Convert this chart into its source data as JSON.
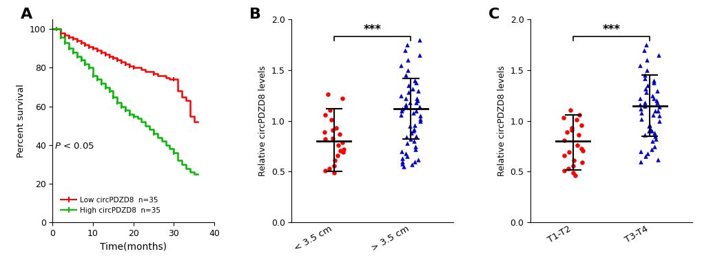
{
  "panel_A": {
    "xlabel": "Time(months)",
    "ylabel": "Percent survival",
    "xlim": [
      0,
      40
    ],
    "ylim": [
      0,
      105
    ],
    "xticks": [
      0,
      10,
      20,
      30,
      40
    ],
    "yticks": [
      0,
      20,
      40,
      60,
      80,
      100
    ],
    "p_text": "P < 0.05",
    "low_color": "#ff0000",
    "high_color": "#00bb00",
    "low_label": "Low circPDZD8  n=35",
    "high_label": "High circPDZD8  n=35",
    "low_t": [
      0,
      1,
      2,
      3,
      4,
      5,
      6,
      7,
      8,
      9,
      10,
      11,
      12,
      13,
      14,
      15,
      16,
      17,
      18,
      19,
      20,
      21,
      22,
      23,
      24,
      25,
      26,
      27,
      28,
      29,
      30,
      31,
      32,
      33,
      34,
      35,
      36
    ],
    "low_s": [
      100,
      100,
      98,
      97,
      96,
      95,
      94,
      93,
      92,
      91,
      90,
      89,
      88,
      87,
      86,
      85,
      84,
      83,
      82,
      81,
      80,
      80,
      79,
      78,
      78,
      77,
      76,
      76,
      75,
      74,
      74,
      68,
      65,
      63,
      55,
      52,
      52
    ],
    "high_t": [
      0,
      1,
      2,
      3,
      4,
      5,
      6,
      7,
      8,
      9,
      10,
      11,
      12,
      13,
      14,
      15,
      16,
      17,
      18,
      19,
      20,
      21,
      22,
      23,
      24,
      25,
      26,
      27,
      28,
      29,
      30,
      31,
      32,
      33,
      34,
      35,
      36
    ],
    "high_s": [
      100,
      100,
      96,
      93,
      90,
      88,
      86,
      84,
      82,
      80,
      76,
      74,
      72,
      70,
      68,
      65,
      62,
      60,
      58,
      56,
      55,
      54,
      52,
      50,
      48,
      46,
      44,
      42,
      40,
      38,
      36,
      32,
      30,
      28,
      26,
      25,
      25
    ],
    "low_censors": [
      1,
      2,
      3,
      4,
      5,
      6,
      7,
      8,
      9,
      10,
      11,
      12,
      13,
      14,
      15,
      16,
      17,
      18,
      19,
      20,
      25,
      30
    ],
    "high_censors": [
      1,
      2,
      3,
      4,
      5,
      6,
      7,
      8,
      9,
      10,
      11,
      12,
      13,
      14,
      15,
      16,
      17,
      18,
      19,
      20,
      25,
      30
    ]
  },
  "panel_B": {
    "ylabel": "Relative circPDZD8 levels",
    "ylim": [
      0.0,
      2.0
    ],
    "yticks": [
      0.0,
      0.5,
      1.0,
      1.5,
      2.0
    ],
    "categories": [
      "< 3.5 cm",
      "> 3.5 cm"
    ],
    "group1_color": "#ff0000",
    "group2_color": "#0000cc",
    "group1_mean": 0.8,
    "group1_lower": 0.5,
    "group1_upper": 1.12,
    "group2_mean": 1.12,
    "group2_lower": 0.82,
    "group2_upper": 1.42,
    "group1_data": [
      0.82,
      0.87,
      0.91,
      0.76,
      0.72,
      0.61,
      0.56,
      0.51,
      0.53,
      0.49,
      0.66,
      0.71,
      1.01,
      1.06,
      1.11,
      1.22,
      1.26,
      0.83,
      0.79,
      0.89,
      0.93,
      0.69
    ],
    "group2_data": [
      1.1,
      1.15,
      1.2,
      1.05,
      1.0,
      0.95,
      0.9,
      0.85,
      0.8,
      0.75,
      0.7,
      0.65,
      0.6,
      1.3,
      1.35,
      1.4,
      1.45,
      1.5,
      1.55,
      1.6,
      1.65,
      1.7,
      1.75,
      1.8,
      1.1,
      1.12,
      1.08,
      0.62,
      1.25,
      1.18,
      1.22,
      0.58,
      0.92,
      0.88,
      0.82,
      1.02,
      1.06,
      0.68,
      0.72,
      0.78,
      0.84,
      0.96,
      1.14,
      1.16,
      1.18,
      1.22,
      1.28,
      1.32,
      1.38,
      0.63,
      0.6,
      0.57,
      0.55
    ],
    "sig_text": "***"
  },
  "panel_C": {
    "ylabel": "Relative circPDZD8 levels",
    "ylim": [
      0.0,
      2.0
    ],
    "yticks": [
      0.0,
      0.5,
      1.0,
      1.5,
      2.0
    ],
    "categories": [
      "T1-T2",
      "T3-T4"
    ],
    "group1_color": "#ff0000",
    "group2_color": "#0000cc",
    "group1_mean": 0.8,
    "group1_lower": 0.52,
    "group1_upper": 1.06,
    "group2_mean": 1.15,
    "group2_lower": 0.85,
    "group2_upper": 1.45,
    "group1_data": [
      0.81,
      0.86,
      0.91,
      0.76,
      0.71,
      0.61,
      0.56,
      0.51,
      0.53,
      0.49,
      1.01,
      1.06,
      1.11,
      0.66,
      0.69,
      0.73,
      0.89,
      0.93,
      0.96,
      1.03,
      0.46,
      0.59
    ],
    "group2_data": [
      1.1,
      1.15,
      1.2,
      1.05,
      1.0,
      0.95,
      0.9,
      0.85,
      0.8,
      0.75,
      0.7,
      0.65,
      0.6,
      1.3,
      1.35,
      1.4,
      1.45,
      1.5,
      1.55,
      1.6,
      1.65,
      1.7,
      1.75,
      1.1,
      1.12,
      1.08,
      1.25,
      1.18,
      1.22,
      0.88,
      0.82,
      1.02,
      1.06,
      0.92,
      0.96,
      1.14,
      1.16,
      1.18,
      1.22,
      1.28,
      1.32,
      1.38,
      0.62,
      0.86,
      0.9,
      1.42,
      0.68,
      0.72
    ],
    "sig_text": "***"
  }
}
